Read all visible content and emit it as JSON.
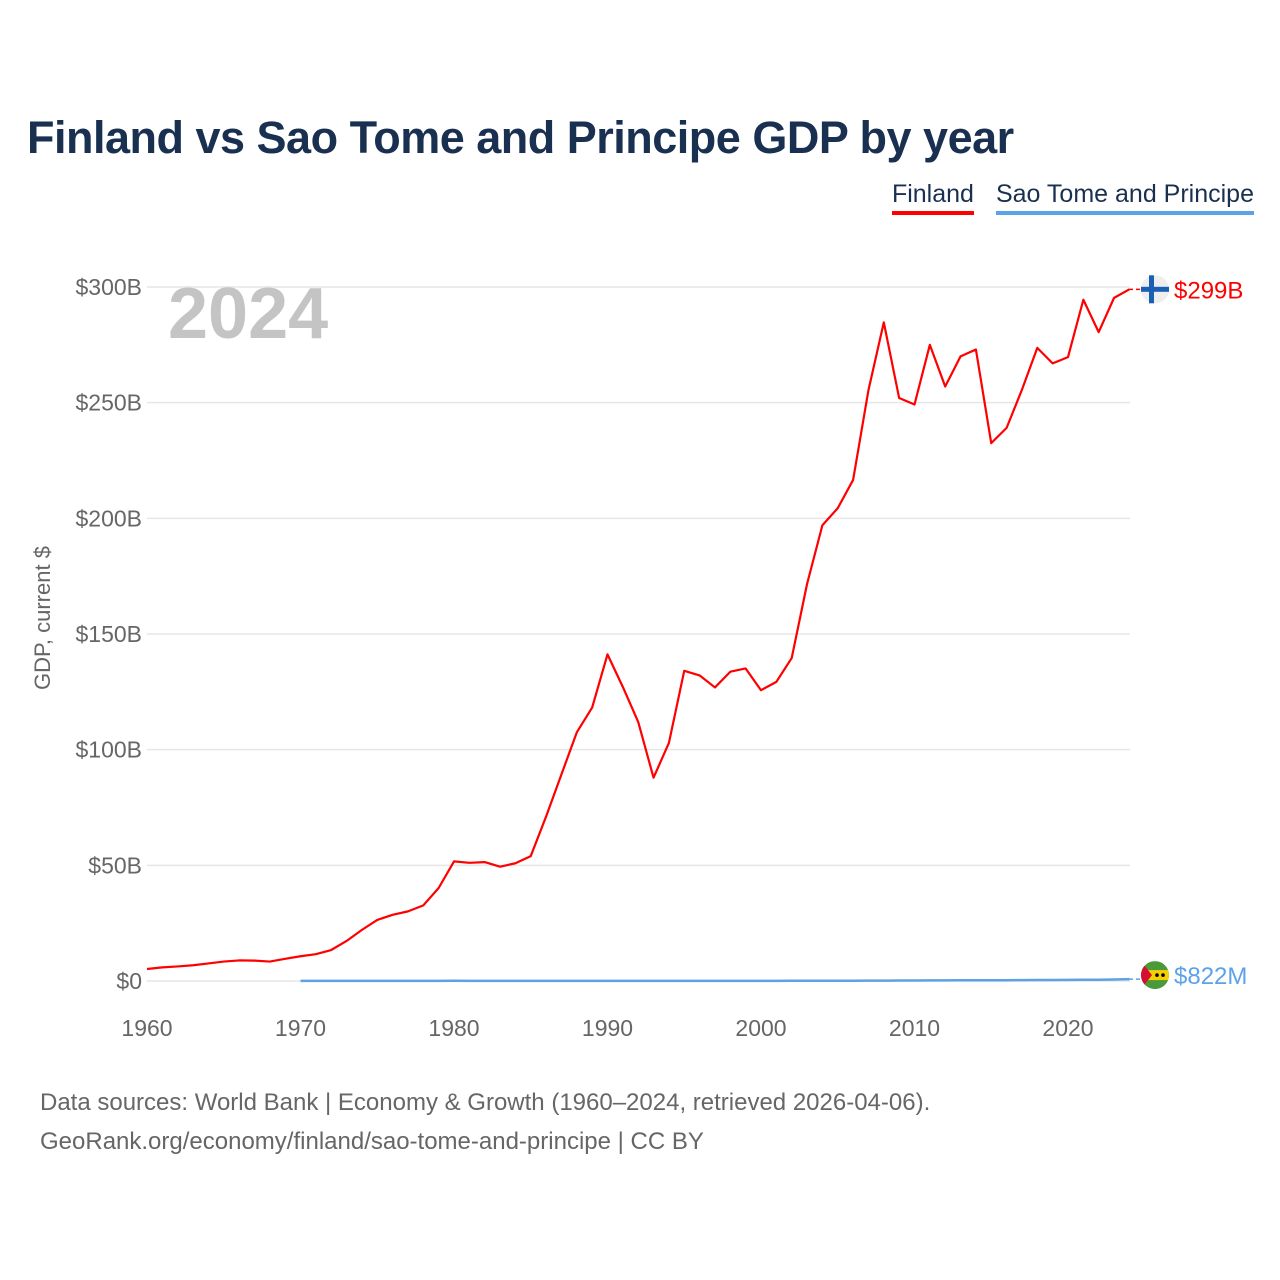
{
  "title": "Finland vs Sao Tome and Principe GDP by year",
  "legend": [
    "Finland",
    "Sao Tome and Principe"
  ],
  "year_watermark": "2024",
  "source_lines": [
    "Data sources: World Bank | Economy & Growth (1960–2024, retrieved 2026-04-06).",
    "GeoRank.org/economy/finland/sao-tome-and-principe | CC BY"
  ],
  "chart_data": {
    "type": "line",
    "title": "Finland vs Sao Tome and Principe GDP by year",
    "xlabel": "",
    "ylabel": "GDP, current $",
    "xlim": [
      1960,
      2024
    ],
    "ylim": [
      0,
      300
    ],
    "y_unit": "billion USD",
    "x_ticks": [
      1960,
      1970,
      1980,
      1990,
      2000,
      2010,
      2020
    ],
    "y_ticks": [
      0,
      50,
      100,
      150,
      200,
      250,
      300
    ],
    "y_tick_labels": [
      "$0",
      "$50B",
      "$100B",
      "$150B",
      "$200B",
      "$250B",
      "$300B"
    ],
    "grid": true,
    "legend_position": "top-right",
    "series": [
      {
        "name": "Finland",
        "color": "#ff0000",
        "start_year": 1960,
        "end_label": "$299B",
        "values": [
          5.2,
          5.9,
          6.3,
          6.8,
          7.6,
          8.4,
          8.9,
          8.8,
          8.4,
          9.6,
          10.7,
          11.6,
          13.4,
          17.3,
          22.1,
          26.4,
          28.6,
          30.1,
          32.7,
          40.2,
          51.7,
          51.1,
          51.4,
          49.4,
          50.9,
          54.0,
          71.1,
          89.3,
          107.5,
          118.2,
          141.2,
          127.1,
          112.0,
          87.9,
          102.9,
          134.1,
          132.1,
          126.9,
          133.7,
          135.1,
          125.7,
          129.3,
          139.6,
          171.6,
          197.0,
          204.4,
          216.6,
          255.4,
          284.7,
          252.0,
          249.2,
          275.0,
          257.0,
          270.0,
          273.0,
          232.5,
          239.1,
          255.6,
          273.7,
          267.0,
          269.7,
          294.5,
          280.5,
          295.3,
          299.0
        ]
      },
      {
        "name": "Sao Tome and Principe",
        "color": "#5ca2e8",
        "start_year": 1970,
        "end_label": "$822M",
        "values": [
          0.03,
          0.03,
          0.03,
          0.04,
          0.05,
          0.05,
          0.05,
          0.05,
          0.06,
          0.07,
          0.09,
          0.08,
          0.08,
          0.07,
          0.06,
          0.06,
          0.07,
          0.06,
          0.05,
          0.05,
          0.06,
          0.06,
          0.06,
          0.06,
          0.06,
          0.05,
          0.05,
          0.05,
          0.05,
          0.05,
          0.08,
          0.08,
          0.09,
          0.1,
          0.11,
          0.12,
          0.13,
          0.14,
          0.18,
          0.19,
          0.2,
          0.25,
          0.26,
          0.3,
          0.35,
          0.32,
          0.35,
          0.38,
          0.41,
          0.43,
          0.47,
          0.52,
          0.55,
          0.65,
          0.822
        ]
      }
    ]
  }
}
